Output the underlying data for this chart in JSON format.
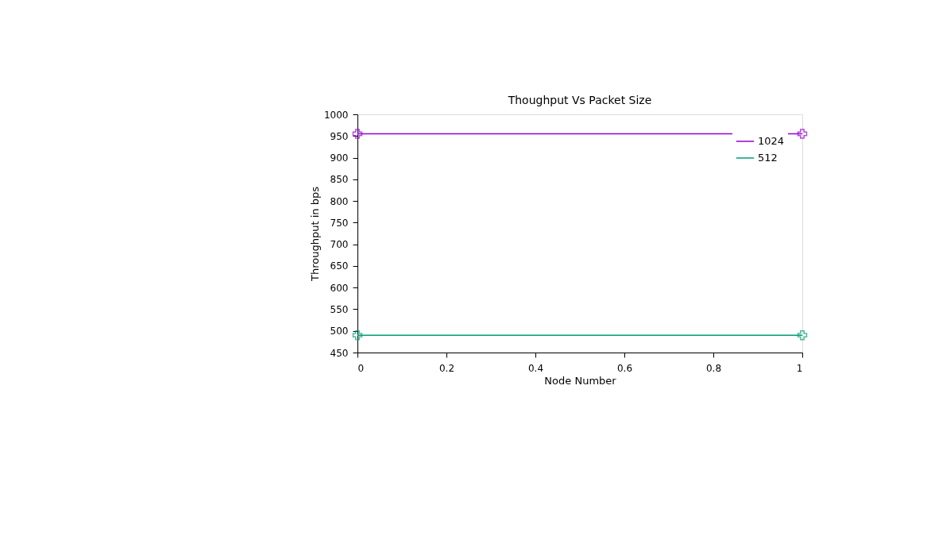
{
  "chart_data": {
    "type": "line",
    "title": "Thoughput Vs Packet Size",
    "xlabel": "Node Number",
    "ylabel": "Throughput in bps",
    "x": [
      0,
      1
    ],
    "series": [
      {
        "name": "1024",
        "color": "#9400d3",
        "values": [
          955,
          955
        ]
      },
      {
        "name": "512",
        "color": "#009e73",
        "values": [
          490,
          490
        ]
      }
    ],
    "xlim": [
      0,
      1
    ],
    "xticks": [
      0,
      0.2,
      0.4,
      0.6,
      0.8,
      1
    ],
    "ylim": [
      450,
      1000
    ],
    "yticks": [
      450,
      500,
      550,
      600,
      650,
      700,
      750,
      800,
      850,
      900,
      950,
      1000
    ],
    "grid": false,
    "legend": "top right",
    "marker": "cross",
    "line_style": "solid"
  }
}
